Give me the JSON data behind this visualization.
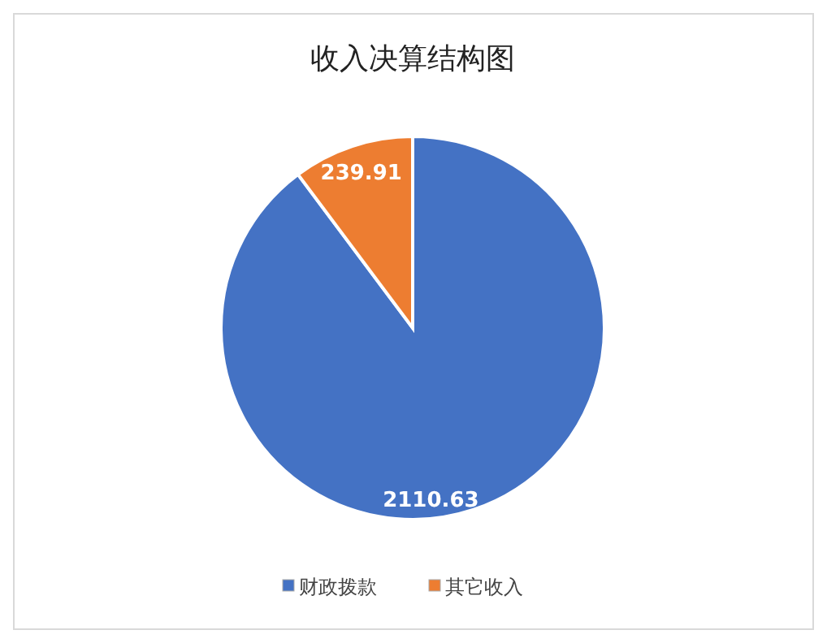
{
  "chart_data": {
    "type": "pie",
    "title": "收入决算结构图",
    "categories": [
      "财政拨款",
      "其它收入"
    ],
    "values": [
      2110.63,
      239.91
    ],
    "colors": [
      "#4472c4",
      "#ed7d31"
    ],
    "data_labels": true,
    "legend": "bottom"
  }
}
